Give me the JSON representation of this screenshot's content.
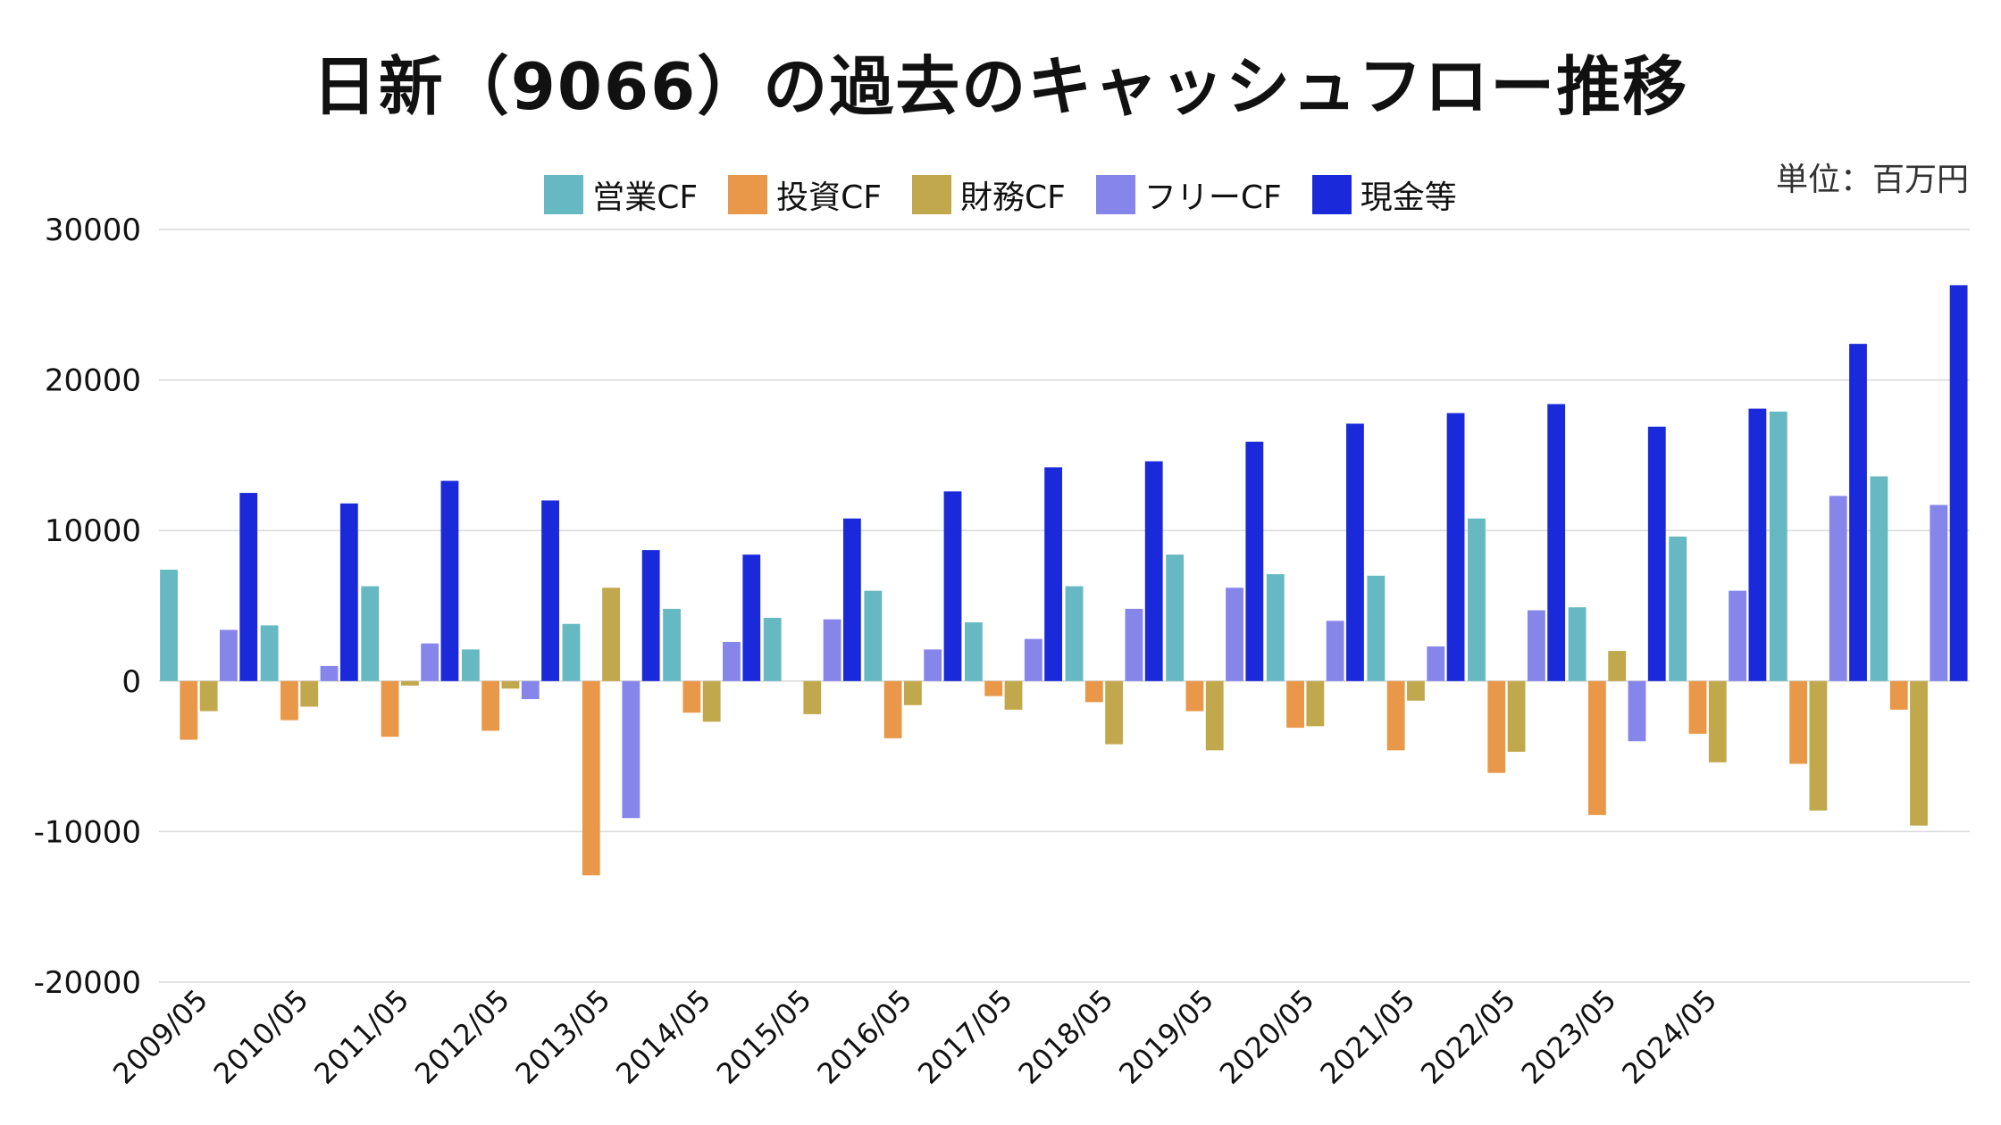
{
  "title": "日新（9066）の過去のキャッシュフロー推移",
  "unit": "単位：百万円",
  "chart_data": {
    "type": "bar",
    "categories": [
      "2009/05",
      "2010/05",
      "2011/05",
      "2012/05",
      "2013/05",
      "2014/05",
      "2015/05",
      "2016/05",
      "2017/05",
      "2018/05",
      "2019/05",
      "2020/05",
      "2021/05",
      "2022/05",
      "2023/05",
      "2024/05",
      "",
      ""
    ],
    "series": [
      {
        "name": "営業CF",
        "color": "#66b8c2",
        "values": [
          7400,
          3700,
          6300,
          2100,
          3800,
          4800,
          4200,
          6000,
          3900,
          6300,
          8400,
          7100,
          7000,
          10800,
          4900,
          9600,
          17900,
          13600
        ]
      },
      {
        "name": "投資CF",
        "color": "#e89848",
        "values": [
          -3900,
          -2600,
          -3700,
          -3300,
          -12900,
          -2100,
          0,
          -3800,
          -1000,
          -1400,
          -2000,
          -3100,
          -4600,
          -6100,
          -8900,
          -3500,
          -5500,
          -1900
        ]
      },
      {
        "name": "財務CF",
        "color": "#c2a84c",
        "values": [
          -2000,
          -1700,
          -300,
          -500,
          6200,
          -2700,
          -2200,
          -1600,
          -1900,
          -4200,
          -4600,
          -3000,
          -1300,
          -4700,
          2000,
          -5400,
          -8600,
          -9600
        ]
      },
      {
        "name": "フリーCF",
        "color": "#8585ea",
        "values": [
          3400,
          1000,
          2500,
          -1200,
          -9100,
          2600,
          4100,
          2100,
          2800,
          4800,
          6200,
          4000,
          2300,
          4700,
          -4000,
          6000,
          12300,
          11700
        ]
      },
      {
        "name": "現金等",
        "color": "#1a2adb",
        "values": [
          12500,
          11800,
          13300,
          12000,
          8700,
          8400,
          10800,
          12600,
          14200,
          14600,
          15900,
          17100,
          17800,
          18400,
          16900,
          18100,
          22400,
          26300
        ]
      }
    ],
    "y_ticks": [
      30000,
      20000,
      10000,
      0,
      -10000,
      -20000
    ],
    "ylim": [
      -20000,
      30000
    ],
    "grid": true,
    "legend_position": "top"
  }
}
